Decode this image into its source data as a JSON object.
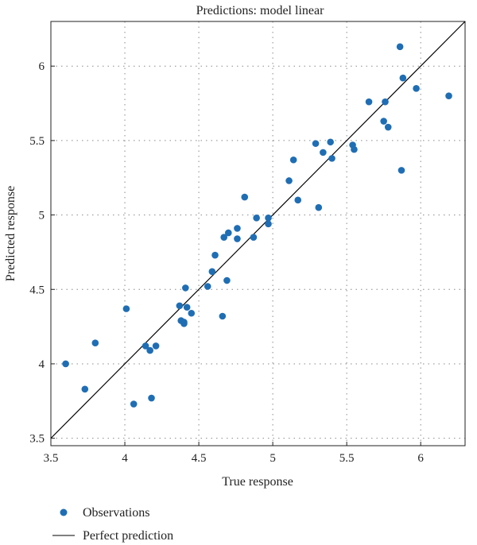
{
  "chart_data": {
    "type": "scatter",
    "title": "Predictions: model linear",
    "xlabel": "True response",
    "ylabel": "Predicted response",
    "xlim": [
      3.5,
      6.3
    ],
    "ylim": [
      3.45,
      6.3
    ],
    "xticks": [
      3.5,
      4,
      4.5,
      5,
      5.5,
      6
    ],
    "xtick_labels": [
      "3.5",
      "4",
      "4.5",
      "5",
      "5.5",
      "6"
    ],
    "yticks": [
      3.5,
      4,
      4.5,
      5,
      5.5,
      6
    ],
    "ytick_labels": [
      "3.5",
      "4",
      "4.5",
      "5",
      "5.5",
      "6"
    ],
    "grid": true,
    "legend_position": "below",
    "series": [
      {
        "name": "Observations",
        "type": "scatter",
        "color": "#1f6eb4",
        "x": [
          3.6,
          3.73,
          3.8,
          4.01,
          4.06,
          4.14,
          4.17,
          4.18,
          4.21,
          4.37,
          4.38,
          4.4,
          4.41,
          4.42,
          4.4,
          4.45,
          4.56,
          4.59,
          4.61,
          4.66,
          4.67,
          4.69,
          4.7,
          4.76,
          4.76,
          4.81,
          4.87,
          4.89,
          4.97,
          4.97,
          5.11,
          5.14,
          5.17,
          5.29,
          5.31,
          5.34,
          5.39,
          5.4,
          5.54,
          5.55,
          5.65,
          5.75,
          5.76,
          5.78,
          5.86,
          5.87,
          5.88,
          5.97,
          6.19
        ],
        "y": [
          4.0,
          3.83,
          4.14,
          4.37,
          3.73,
          4.12,
          4.09,
          3.77,
          4.12,
          4.39,
          4.29,
          4.27,
          4.51,
          4.38,
          4.28,
          4.34,
          4.52,
          4.62,
          4.73,
          4.32,
          4.85,
          4.56,
          4.88,
          4.91,
          4.84,
          5.12,
          4.85,
          4.98,
          4.98,
          4.94,
          5.23,
          5.37,
          5.1,
          5.48,
          5.05,
          5.42,
          5.49,
          5.38,
          5.47,
          5.44,
          5.76,
          5.63,
          5.76,
          5.59,
          6.13,
          5.3,
          5.92,
          5.85,
          5.8
        ]
      },
      {
        "name": "Perfect prediction",
        "type": "line",
        "color": "#000000",
        "x": [
          3.5,
          6.3
        ],
        "y": [
          3.5,
          6.3
        ]
      }
    ]
  },
  "legend": {
    "items": [
      {
        "label": "Observations",
        "marker": "dot",
        "color": "#1f6eb4"
      },
      {
        "label": "Perfect prediction",
        "marker": "line",
        "color": "#000000"
      }
    ]
  }
}
